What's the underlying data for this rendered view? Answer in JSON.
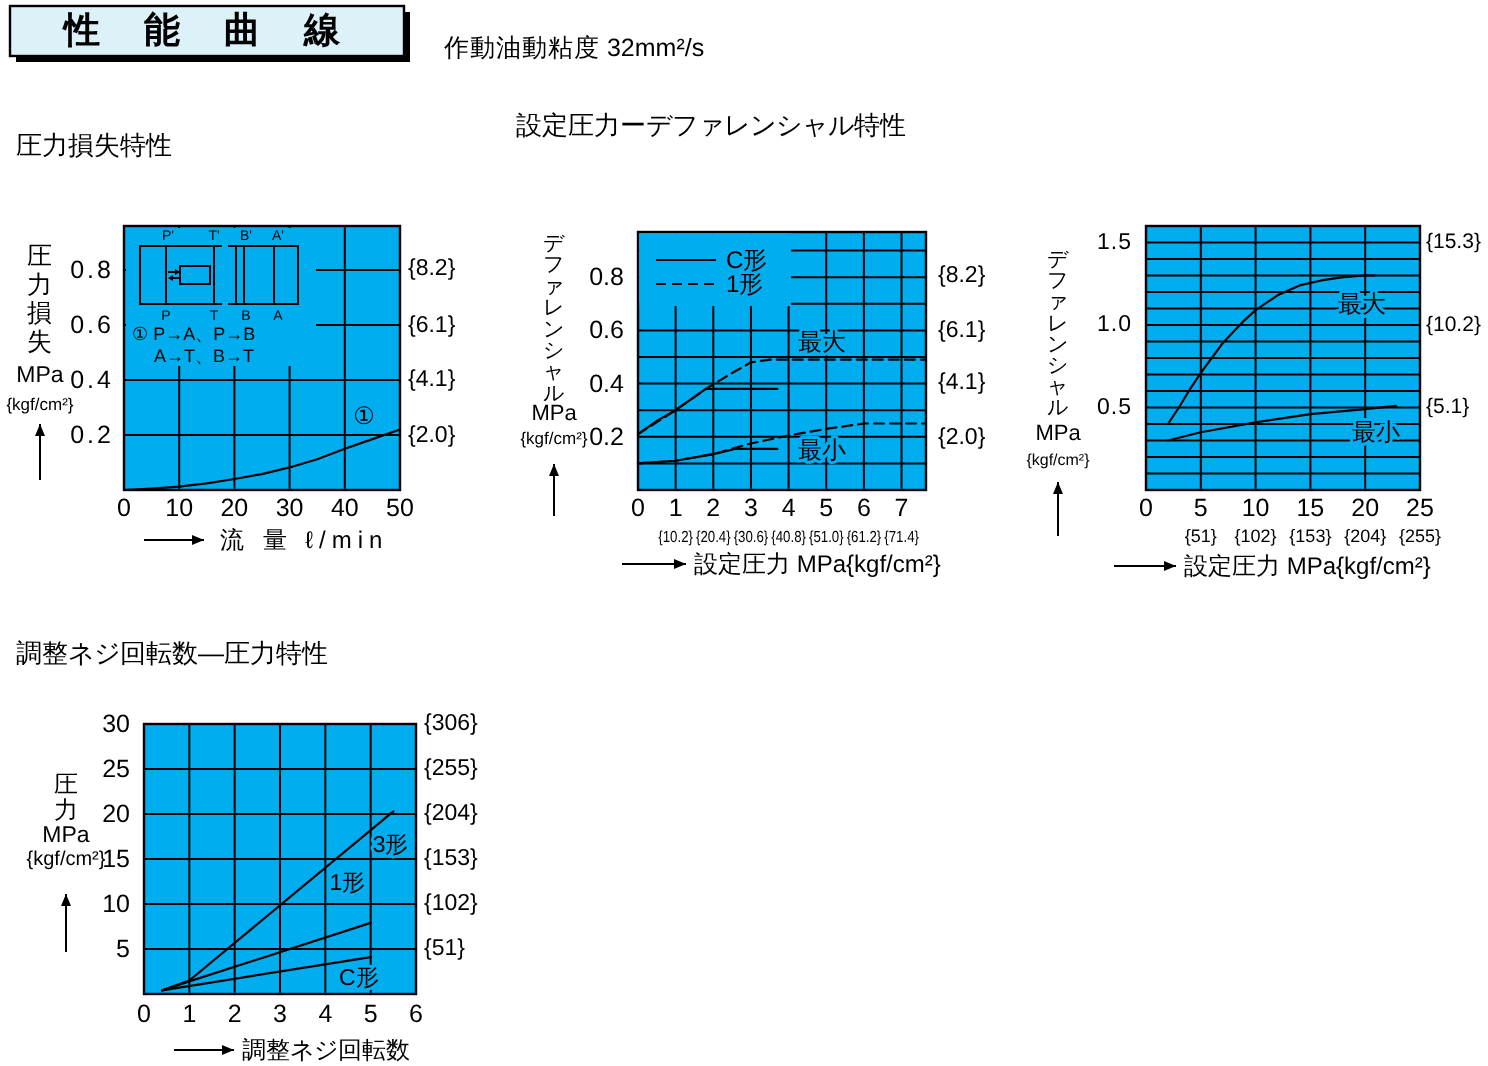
{
  "chart_data": [
    {
      "type": "other",
      "title": "性能曲線",
      "annotations": [
        "作動油動粘度 32mm²/s"
      ]
    },
    {
      "type": "line",
      "title": "圧力損失特性",
      "xlabel": "流 量 ℓ/min",
      "ylabel": "圧力損失\nMPa\n{kgf/cm²}",
      "xlim": [
        0,
        50
      ],
      "xticks": [
        0,
        10,
        20,
        30,
        40,
        50
      ],
      "ylim": [
        0,
        0.96
      ],
      "yticks": [
        0.2,
        0.4,
        0.6,
        0.8
      ],
      "y2lim": [
        0,
        9.8
      ],
      "y2ticks": [
        {
          "value": 2.0,
          "label": "{2.0}"
        },
        {
          "value": 4.1,
          "label": "{4.1}"
        },
        {
          "value": 6.1,
          "label": "{6.1}"
        },
        {
          "value": 8.2,
          "label": "{8.2}"
        }
      ],
      "grid": true,
      "series": [
        {
          "name": "①",
          "color": "#000000",
          "line_style": "solid",
          "x": [
            0,
            5,
            10,
            15,
            20,
            25,
            30,
            35,
            40,
            45,
            50
          ],
          "values": [
            0,
            0.005,
            0.012,
            0.024,
            0.04,
            0.058,
            0.082,
            0.112,
            0.15,
            0.185,
            0.22
          ]
        }
      ],
      "annotations": [
        "P'",
        "T'",
        "B'",
        "A'",
        "P",
        "T",
        "B",
        "A",
        "① P→A、P→B",
        "A→T、B→T"
      ]
    },
    {
      "type": "line",
      "title": "設定圧力ーデファレンシャル特性",
      "xlabel": "設定圧力 MPa{kgf/cm²}",
      "ylabel": "デファレンシャル\nMPa\n{kgf/cm²}",
      "xlim": [
        0,
        7.65
      ],
      "xticks": [
        0,
        1,
        2,
        3,
        4,
        5,
        6,
        7
      ],
      "x2lim": [
        0,
        78
      ],
      "x2ticks": [
        {
          "value": 10.2,
          "label": "{10.2}"
        },
        {
          "value": 20.4,
          "label": "{20.4}"
        },
        {
          "value": 30.6,
          "label": "{30.6}"
        },
        {
          "value": 40.8,
          "label": "{40.8}"
        },
        {
          "value": 51.0,
          "label": "{51.0}"
        },
        {
          "value": 61.2,
          "label": "{61.2}"
        },
        {
          "value": 71.4,
          "label": "{71.4}"
        }
      ],
      "ylim": [
        0,
        0.97
      ],
      "yticks": [
        {
          "value": 0.1,
          "label": null
        },
        0.2,
        {
          "value": 0.3,
          "label": null
        },
        0.4,
        {
          "value": 0.5,
          "label": null
        },
        0.6,
        {
          "value": 0.7,
          "label": null
        },
        0.8,
        {
          "value": 0.9,
          "label": null
        }
      ],
      "y2lim": [
        0,
        9.9
      ],
      "y2ticks": [
        {
          "value": 2.0,
          "label": "{2.0}"
        },
        {
          "value": 4.1,
          "label": "{4.1}"
        },
        {
          "value": 6.1,
          "label": "{6.1}"
        },
        {
          "value": 8.2,
          "label": "{8.2}"
        }
      ],
      "grid": true,
      "legend": "top left",
      "series": [
        {
          "name": "C形",
          "color": "#000000",
          "line_style": "solid",
          "x": [
            0,
            0.5,
            1,
            1.5,
            1.8,
            3.7
          ],
          "values": [
            0.21,
            0.26,
            0.3,
            0.35,
            0.38,
            0.38
          ]
        },
        {
          "color": "#000000",
          "line_style": "solid",
          "x": [
            0,
            1,
            2,
            2.6,
            3.7
          ],
          "values": [
            0.1,
            0.11,
            0.135,
            0.155,
            0.155
          ]
        },
        {
          "name": "1形",
          "color": "#000000",
          "line_style": "dashed",
          "x": [
            0,
            1,
            1.8,
            2.5,
            3,
            3.5,
            7.65
          ],
          "values": [
            0.21,
            0.3,
            0.38,
            0.44,
            0.48,
            0.49,
            0.49
          ]
        },
        {
          "color": "#000000",
          "line_style": "dashed",
          "x": [
            0,
            1,
            2,
            3,
            4,
            5,
            6,
            7.65
          ],
          "values": [
            0.1,
            0.11,
            0.135,
            0.175,
            0.205,
            0.23,
            0.25,
            0.25
          ]
        }
      ],
      "annotations": [
        "最大",
        "最小"
      ]
    },
    {
      "type": "line",
      "xlabel": "設定圧力 MPa{kgf/cm²}",
      "ylabel": "デファレンシャル\nMPa\n{kgf/cm²}",
      "xlim": [
        0,
        25
      ],
      "xticks": [
        0,
        5,
        10,
        15,
        20,
        25
      ],
      "x2lim": [
        0,
        255
      ],
      "x2ticks": [
        {
          "value": 51,
          "label": "{51}"
        },
        {
          "value": 102,
          "label": "{102}"
        },
        {
          "value": 153,
          "label": "{153}"
        },
        {
          "value": 204,
          "label": "{204}"
        },
        {
          "value": 255,
          "label": "{255}"
        }
      ],
      "ylim": [
        0,
        1.6
      ],
      "yticks": [
        {
          "value": 0.1,
          "label": null
        },
        {
          "value": 0.2,
          "label": null
        },
        {
          "value": 0.3,
          "label": null
        },
        {
          "value": 0.4,
          "label": null
        },
        0.5,
        {
          "value": 0.6,
          "label": null
        },
        {
          "value": 0.7,
          "label": null
        },
        {
          "value": 0.8,
          "label": null
        },
        {
          "value": 0.9,
          "label": null
        },
        {
          "value": 1,
          "label": "1.0"
        },
        {
          "value": 1.1,
          "label": null
        },
        {
          "value": 1.2,
          "label": null
        },
        {
          "value": 1.3,
          "label": null
        },
        {
          "value": 1.4,
          "label": null
        },
        1.5
      ],
      "y2lim": [
        0,
        16.3
      ],
      "y2ticks": [
        {
          "value": 5.1,
          "label": "{5.1}"
        },
        {
          "value": 10.2,
          "label": "{10.2}"
        },
        {
          "value": 15.3,
          "label": "{15.3}"
        }
      ],
      "grid": true,
      "series": [
        {
          "name": "最大",
          "color": "#000000",
          "line_style": "solid",
          "x": [
            2,
            3,
            4,
            5,
            6,
            7,
            8,
            9,
            10,
            12,
            14,
            16,
            18,
            20,
            20.9
          ],
          "values": [
            0.4,
            0.5,
            0.61,
            0.71,
            0.8,
            0.89,
            0.96,
            1.03,
            1.09,
            1.18,
            1.24,
            1.27,
            1.29,
            1.3,
            1.3
          ]
        },
        {
          "name": "最小",
          "color": "#000000",
          "line_style": "solid",
          "x": [
            2,
            5,
            10,
            15,
            20,
            22.8
          ],
          "values": [
            0.3,
            0.35,
            0.41,
            0.46,
            0.49,
            0.51
          ]
        }
      ]
    },
    {
      "type": "line",
      "title": "調整ネジ回転数―圧力特性",
      "xlabel": "調整ネジ回転数",
      "ylabel": "圧力\nMPa\n{kgf/cm²}",
      "xlim": [
        0,
        6
      ],
      "xticks": [
        0,
        1,
        2,
        3,
        4,
        5,
        6
      ],
      "ylim": [
        0,
        30
      ],
      "yticks": [
        5,
        10,
        15,
        20,
        25,
        30
      ],
      "y2lim": [
        0,
        306
      ],
      "y2ticks": [
        {
          "value": 51,
          "label": "{51}"
        },
        {
          "value": 102,
          "label": "{102}"
        },
        {
          "value": 153,
          "label": "{153}"
        },
        {
          "value": 204,
          "label": "{204}"
        },
        {
          "value": 255,
          "label": "{255}"
        },
        {
          "value": 306,
          "label": "{306}"
        }
      ],
      "grid": true,
      "series": [
        {
          "name": "3形",
          "color": "#000000",
          "line_style": "solid",
          "x": [
            0.4,
            1,
            5.5
          ],
          "values": [
            0.4,
            1.5,
            20.3
          ]
        },
        {
          "name": "1形",
          "color": "#000000",
          "line_style": "solid",
          "x": [
            0.4,
            1,
            5
          ],
          "values": [
            0.4,
            1.4,
            7.9
          ]
        },
        {
          "name": "C形",
          "color": "#000000",
          "line_style": "solid",
          "x": [
            0.4,
            5
          ],
          "values": [
            0.4,
            4.1
          ]
        }
      ]
    }
  ]
}
